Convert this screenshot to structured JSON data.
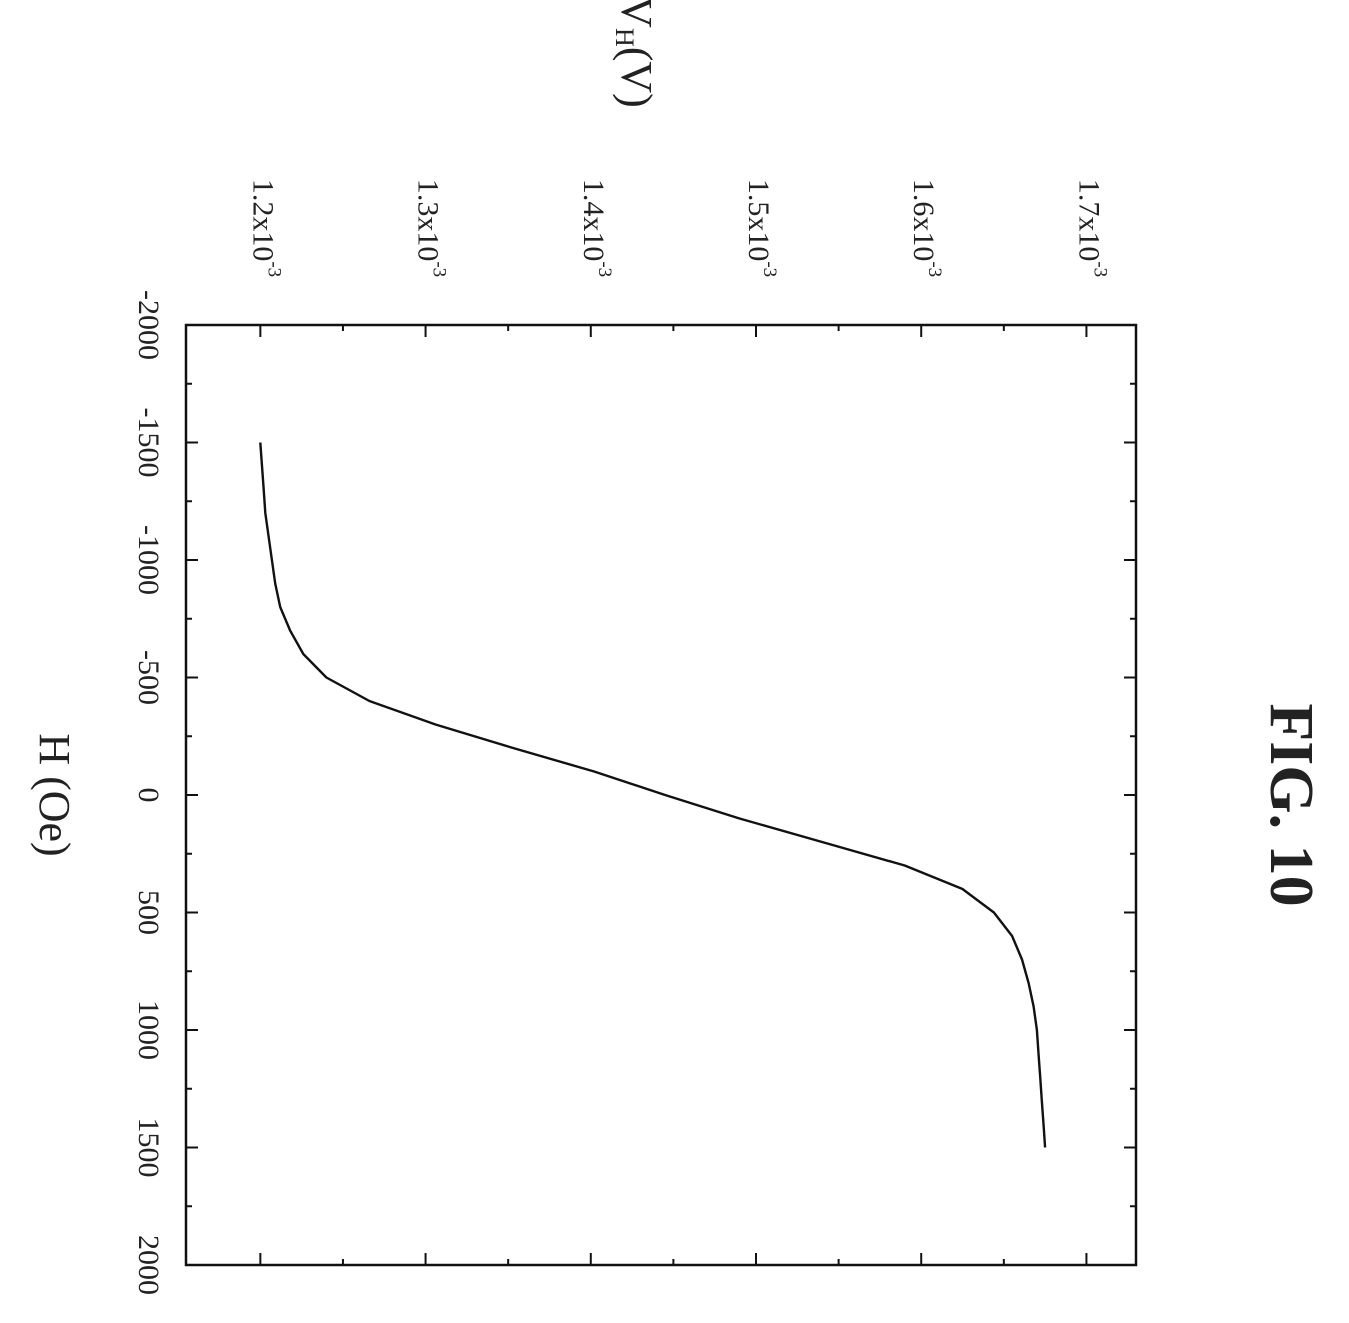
{
  "figure_title": "FIG. 10",
  "chart_data": {
    "type": "line",
    "orientation": "rotated-90-clockwise",
    "xlabel": "H (Oe)",
    "ylabel": {
      "main": "V",
      "subscript": "H",
      "unit": "(V)"
    },
    "x_ticks": [
      "-2000",
      "-1500",
      "-1000",
      "-500",
      "0",
      "500",
      "1000",
      "1500",
      "2000"
    ],
    "y_ticks": [
      {
        "value": 0.0012,
        "mantissa": "1.2x10",
        "exponent": "-3"
      },
      {
        "value": 0.0013,
        "mantissa": "1.3x10",
        "exponent": "-3"
      },
      {
        "value": 0.0014,
        "mantissa": "1.4x10",
        "exponent": "-3"
      },
      {
        "value": 0.0015,
        "mantissa": "1.5x10",
        "exponent": "-3"
      },
      {
        "value": 0.0016,
        "mantissa": "1.6x10",
        "exponent": "-3"
      },
      {
        "value": 0.0017,
        "mantissa": "1.7x10",
        "exponent": "-3"
      }
    ],
    "xlim": [
      -2000,
      2000
    ],
    "ylim": [
      0.001155,
      0.00173
    ],
    "grid": false,
    "legend": "none",
    "series": [
      {
        "color": "#111111",
        "x": [
          -1500,
          -1400,
          -1300,
          -1200,
          -1100,
          -1000,
          -900,
          -800,
          -700,
          -600,
          -500,
          -400,
          -300,
          -200,
          -100,
          0,
          100,
          200,
          300,
          400,
          500,
          600,
          700,
          800,
          900,
          1000,
          1100,
          1200,
          1300,
          1400,
          1500
        ],
        "y": [
          0.0012,
          0.001201,
          0.001202,
          0.001203,
          0.001205,
          0.001207,
          0.001209,
          0.001212,
          0.001218,
          0.001226,
          0.00124,
          0.001266,
          0.001306,
          0.001353,
          0.001402,
          0.001445,
          0.00149,
          0.00154,
          0.00159,
          0.001625,
          0.001644,
          0.001655,
          0.001661,
          0.001665,
          0.001668,
          0.00167,
          0.001671,
          0.001672,
          0.001673,
          0.001674,
          0.001675
        ]
      }
    ]
  }
}
